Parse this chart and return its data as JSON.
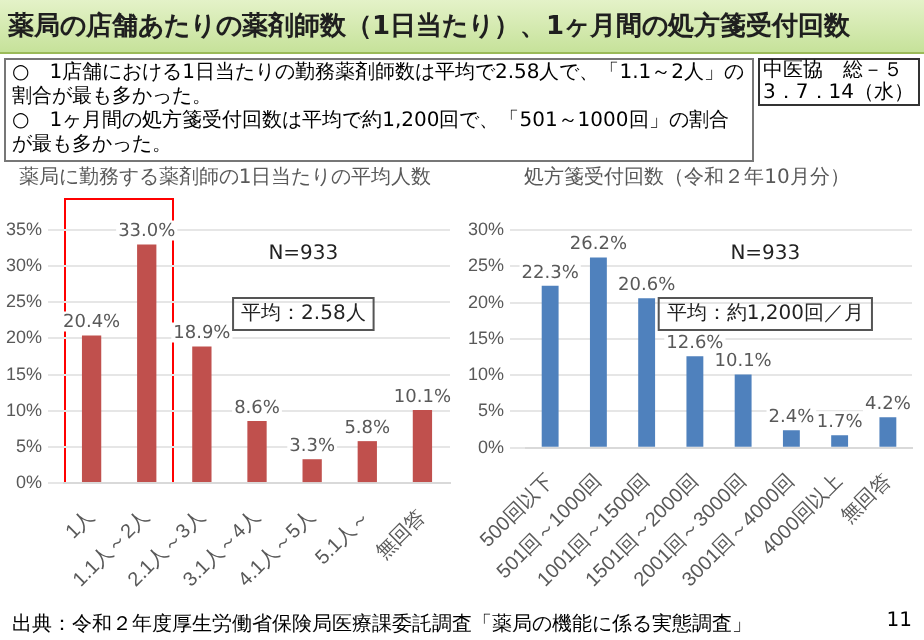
{
  "chart_data": [
    {
      "type": "bar",
      "title": "薬局に勤務する薬剤師の1日当たりの平均人数",
      "categories": [
        "1人",
        "1.1人～2人",
        "2.1人～3人",
        "3.1人～4人",
        "4.1人～5人",
        "5.1人～",
        "無回答"
      ],
      "values": [
        20.4,
        33.0,
        18.9,
        8.6,
        3.3,
        5.8,
        10.1
      ],
      "color": "#c0504d",
      "value_labels": [
        "20.4%",
        "33.0%",
        "18.9%",
        "8.6%",
        "3.3%",
        "5.8%",
        "10.1%"
      ],
      "ylim": [
        0,
        35
      ],
      "yticks": [
        {
          "value": 0,
          "label": "0%"
        },
        {
          "value": 5,
          "label": "5%"
        },
        {
          "value": 10,
          "label": "10%"
        },
        {
          "value": 15,
          "label": "15%"
        },
        {
          "value": 20,
          "label": "20%"
        },
        {
          "value": 25,
          "label": "25%"
        },
        {
          "value": 30,
          "label": "30%"
        },
        {
          "value": 35,
          "label": "35%"
        }
      ],
      "grid": "y",
      "legend": false,
      "annotations": [
        "薬局の店舗あたりの薬剤師数（1日当たり）、1ヶ月間の処方箋受付回数",
        "中医協　総－５",
        "3．7．14（水）",
        "○　1店舗における1日当たりの勤務薬剤師数は平均で2.58人で、「1.1～2人」の割合が最も多かった。",
        "○　1ヶ月間の処方箋受付回数は平均で約1,200回で、「501～1000回」の割合が最も多かった。",
        "N=933",
        "平均：2.58人"
      ]
    },
    {
      "type": "bar",
      "title": "処方箋受付回数（令和２年10月分）",
      "categories": [
        "500回以下",
        "501回～1000回",
        "1001回～1500回",
        "1501回～2000回",
        "2001回～3000回",
        "3001回～4000回",
        "4000回以上",
        "無回答"
      ],
      "values": [
        22.3,
        26.2,
        20.6,
        12.6,
        10.1,
        2.4,
        1.7,
        4.2
      ],
      "color": "#4f81bd",
      "value_labels": [
        "22.3%",
        "26.2%",
        "20.6%",
        "12.6%",
        "10.1%",
        "2.4%",
        "1.7%",
        "4.2%"
      ],
      "ylim": [
        0,
        30
      ],
      "yticks": [
        {
          "value": 0,
          "label": "0%"
        },
        {
          "value": 5,
          "label": "5%"
        },
        {
          "value": 10,
          "label": "10%"
        },
        {
          "value": 15,
          "label": "15%"
        },
        {
          "value": 20,
          "label": "20%"
        },
        {
          "value": 25,
          "label": "25%"
        },
        {
          "value": 30,
          "label": "30%"
        }
      ],
      "grid": "y",
      "legend": false,
      "annotations": [
        "N=933",
        "平均：約1,200回／月",
        "出典：令和２年度厚生労働省保険局医療課委託調査「薬局の機能に係る実態調査」",
        "11"
      ]
    }
  ]
}
